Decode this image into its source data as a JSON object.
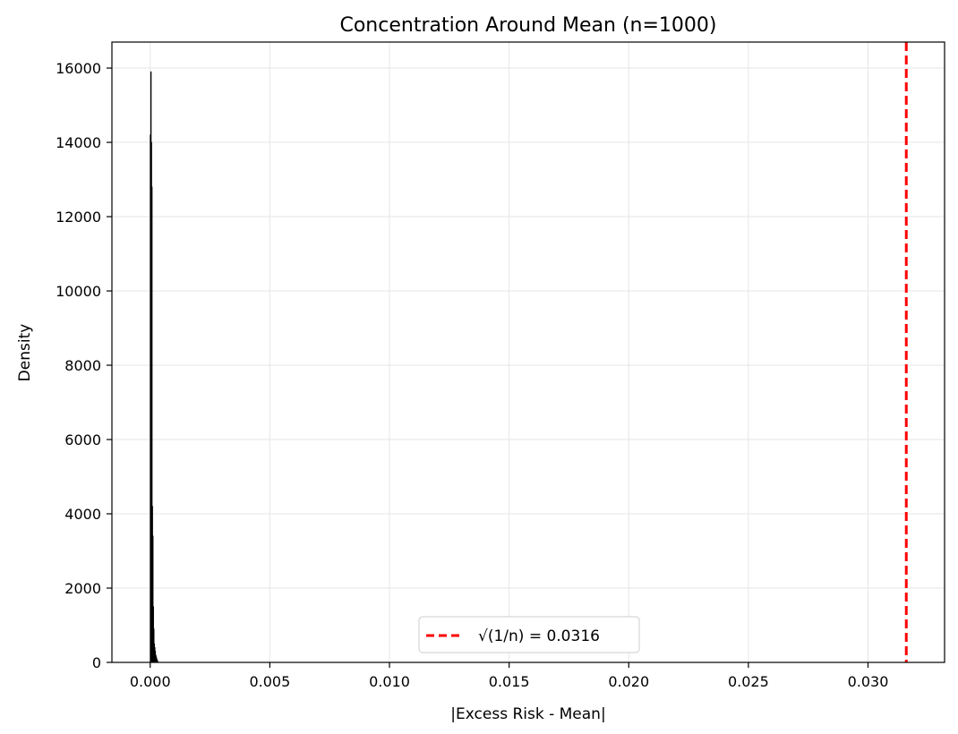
{
  "chart_data": {
    "type": "histogram",
    "title": "Concentration Around Mean (n=1000)",
    "xlabel": "|Excess Risk - Mean|",
    "ylabel": "Density",
    "xlim": [
      -0.0016,
      0.0332
    ],
    "ylim": [
      0,
      16700
    ],
    "xticks": [
      0.0,
      0.005,
      0.01,
      0.015,
      0.02,
      0.025,
      0.03
    ],
    "xtick_labels": [
      "0.000",
      "0.005",
      "0.010",
      "0.015",
      "0.020",
      "0.025",
      "0.030"
    ],
    "yticks": [
      0,
      2000,
      4000,
      6000,
      8000,
      10000,
      12000,
      14000,
      16000
    ],
    "ytick_labels": [
      "0",
      "2000",
      "4000",
      "6000",
      "8000",
      "10000",
      "12000",
      "14000",
      "16000"
    ],
    "grid": true,
    "bars": [
      {
        "x0": 0.0,
        "x1": 2e-05,
        "density": 14200
      },
      {
        "x0": 2e-05,
        "x1": 4e-05,
        "density": 15900
      },
      {
        "x0": 4e-05,
        "x1": 6e-05,
        "density": 14000
      },
      {
        "x0": 6e-05,
        "x1": 8e-05,
        "density": 12800
      },
      {
        "x0": 8e-05,
        "x1": 0.0001,
        "density": 4200
      },
      {
        "x0": 0.0001,
        "x1": 0.00012,
        "density": 3400
      },
      {
        "x0": 0.00012,
        "x1": 0.00014,
        "density": 1500
      },
      {
        "x0": 0.00014,
        "x1": 0.00016,
        "density": 900
      },
      {
        "x0": 0.00016,
        "x1": 0.00018,
        "density": 500
      },
      {
        "x0": 0.00018,
        "x1": 0.0002,
        "density": 400
      },
      {
        "x0": 0.0002,
        "x1": 0.00022,
        "density": 300
      },
      {
        "x0": 0.00022,
        "x1": 0.00024,
        "density": 200
      },
      {
        "x0": 0.00024,
        "x1": 0.00026,
        "density": 150
      },
      {
        "x0": 0.00026,
        "x1": 0.00028,
        "density": 100
      },
      {
        "x0": 0.00028,
        "x1": 0.0003,
        "density": 60
      },
      {
        "x0": 0.0003,
        "x1": 0.00032,
        "density": 30
      }
    ],
    "bar_color": "#1f1f1f",
    "reference_line": {
      "x": 0.0316,
      "label": "√(1/n) = 0.0316",
      "color": "#ff0000",
      "style": "dashed"
    },
    "legend_position": "lower-center"
  }
}
